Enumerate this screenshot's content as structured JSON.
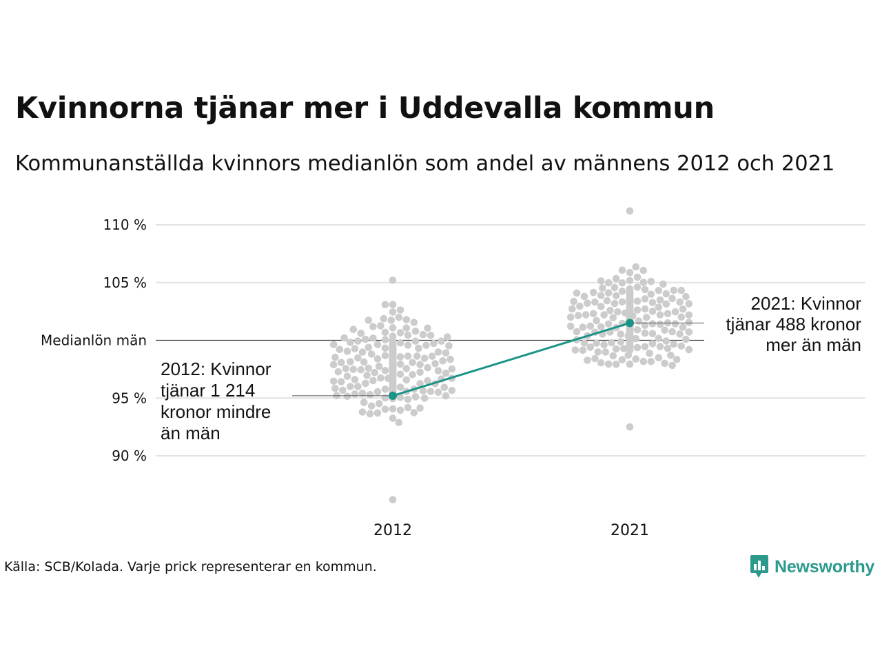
{
  "header": {
    "title": "Kvinnorna tjänar mer i Uddevalla kommun",
    "subtitle": "Kommunanställda kvinnors medianlön som andel av männens 2012 och 2021"
  },
  "footer": {
    "source": "Källa: SCB/Kolada. Varje prick representerar en kommun.",
    "brand": "Newsworthy"
  },
  "colors": {
    "dots": "#cccccc",
    "highlight": "#1a9486",
    "grid": "#e2e2e2",
    "reference_line": "#444444",
    "brand": "#2b9a8c"
  },
  "chart_data": {
    "type": "scatter",
    "subtype": "beeswarm",
    "categories": [
      "2012",
      "2021"
    ],
    "y_tick_values": [
      90,
      95,
      105,
      110
    ],
    "y_tick_labels": [
      "90 %",
      "95 %",
      "105 %",
      "110 %"
    ],
    "ylim": [
      86,
      112
    ],
    "grid": true,
    "reference_line": {
      "value": 100,
      "label": "Medianlön män"
    },
    "swarms": [
      {
        "category": "2012",
        "median": 97.8,
        "min": 86.2,
        "max": 105.2,
        "n": 290
      },
      {
        "category": "2021",
        "median": 101.5,
        "min": 92.5,
        "max": 111.2,
        "n": 290
      }
    ],
    "highlight": {
      "name": "Uddevalla kommun",
      "values": [
        {
          "category": "2012",
          "value": 95.2
        },
        {
          "category": "2021",
          "value": 101.5
        }
      ]
    },
    "annotations": [
      {
        "category": "2012",
        "lines": [
          "2012: Kvinnor",
          "tjänar 1 214",
          "kronor mindre",
          "än män"
        ]
      },
      {
        "category": "2021",
        "lines": [
          "2021: Kvinnor",
          "tjänar 488 kronor",
          "mer än män"
        ]
      }
    ]
  }
}
